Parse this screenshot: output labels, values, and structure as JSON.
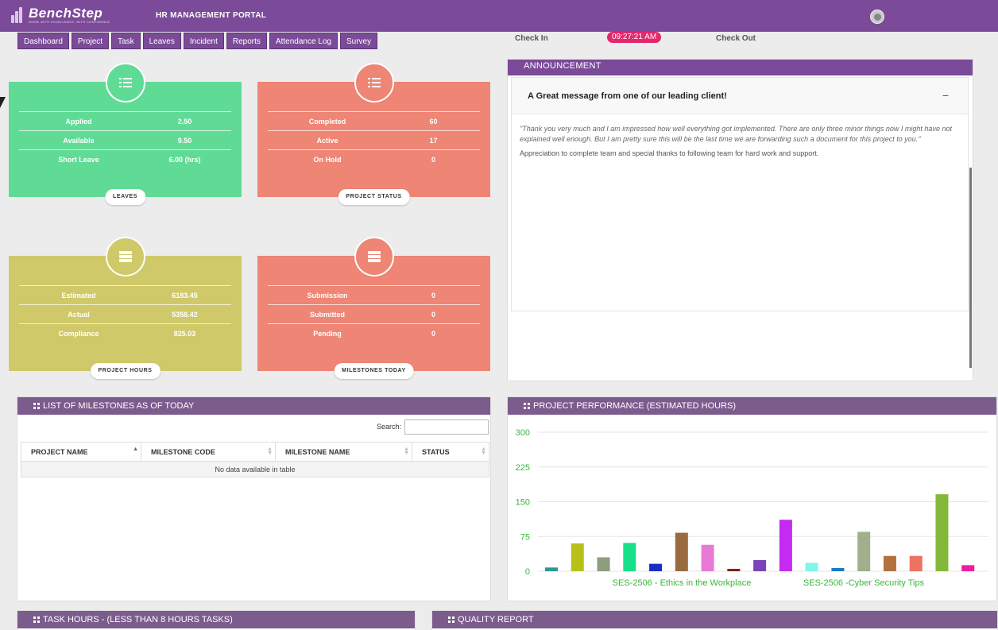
{
  "header": {
    "logo_text": "BenchStep",
    "logo_tagline": "WORK WITH EXCELLENCE, WITH CONFIDENCE",
    "portal_title": "HR MANAGEMENT PORTAL"
  },
  "nav": [
    "Dashboard",
    "Project",
    "Task",
    "Leaves",
    "Incident",
    "Reports",
    "Attendance Log",
    "Survey"
  ],
  "attendance": {
    "check_in_label": "Check In",
    "clock": "09:27:21 AM",
    "check_out_label": "Check Out"
  },
  "cards": {
    "leaves": {
      "label": "LEAVES",
      "rows": [
        {
          "key": "Applied",
          "value": "2.50"
        },
        {
          "key": "Available",
          "value": "9.50"
        },
        {
          "key": "Short Leave",
          "value": "6.00 (hrs)"
        }
      ]
    },
    "project_status": {
      "label": "PROJECT STATUS",
      "rows": [
        {
          "key": "Completed",
          "value": "60"
        },
        {
          "key": "Active",
          "value": "17"
        },
        {
          "key": "On Hold",
          "value": "0"
        }
      ]
    },
    "project_hours": {
      "label": "PROJECT HOURS",
      "rows": [
        {
          "key": "Estimated",
          "value": "6183.45"
        },
        {
          "key": "Actual",
          "value": "5358.42"
        },
        {
          "key": "Compliance",
          "value": "825.03"
        }
      ]
    },
    "milestones_today": {
      "label": "MILESTONES TODAY",
      "rows": [
        {
          "key": "Submission",
          "value": "0"
        },
        {
          "key": "Submitted",
          "value": "0"
        },
        {
          "key": "Pending",
          "value": "0"
        }
      ]
    }
  },
  "announcement": {
    "header": "ANNOUNCEMENT",
    "title": "A Great message from one of our leading client!",
    "collapse_symbol": "−",
    "quote": "\"Thank you very much and I am impressed how well everything got implemented. There are only three minor things now I might have not explained well enough. But I am pretty sure this will be the last time we are forwarding such a document for this project to you.\"",
    "note": "Appreciation to complete team and special thanks to following team for hard work and support."
  },
  "milestones": {
    "header": "LIST OF MILESTONES AS OF TODAY",
    "search_label": "Search:",
    "columns": [
      "PROJECT NAME",
      "MILESTONE CODE",
      "MILESTONE NAME",
      "STATUS"
    ],
    "empty_text": "No data available in table"
  },
  "performance": {
    "header": "PROJECT PERFORMANCE (ESTIMATED HOURS)"
  },
  "chart_data": {
    "type": "bar",
    "title": "PROJECT PERFORMANCE (ESTIMATED HOURS)",
    "ylim": [
      0,
      300
    ],
    "yticks": [
      "0",
      "75",
      "150",
      "225",
      "300"
    ],
    "x_labels": [
      "SES-2506 - Ethics in the Workplace",
      "SES-2506 -Cyber Security Tips"
    ],
    "grid": true,
    "values": [
      8,
      60,
      30,
      61,
      16,
      83,
      57,
      5,
      24,
      111,
      18,
      7,
      85,
      33,
      33,
      166,
      13
    ],
    "colors": [
      "#2a9a8c",
      "#b8c11a",
      "#8d9e7e",
      "#17e08a",
      "#1a2ec2",
      "#9a6a40",
      "#e87ad6",
      "#7a1e0c",
      "#7a44b8",
      "#c42af0",
      "#7ef6ec",
      "#1a7ac2",
      "#9fb08a",
      "#b27240",
      "#ee7260",
      "#84b83a",
      "#ee1c9e"
    ],
    "axis_color": "#3cb43c"
  },
  "task_hours": {
    "header": "TASK HOURS - (LESS THAN 8 HOURS TASKS)"
  },
  "quality": {
    "header": "QUALITY REPORT"
  }
}
